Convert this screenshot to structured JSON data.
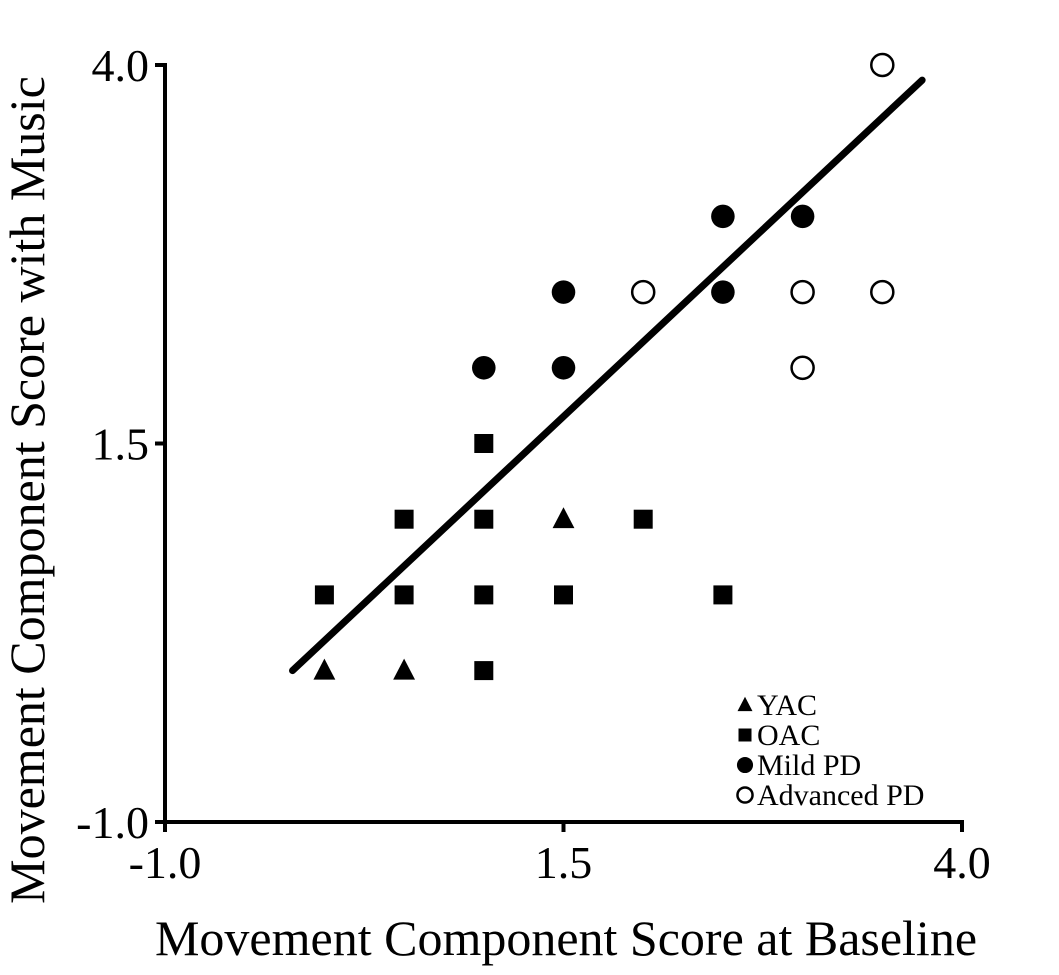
{
  "chart_data": {
    "type": "scatter",
    "title": "",
    "xlabel": "Movement Component Score at Baseline",
    "ylabel": "Movement Component Score with Music",
    "xlim": [
      -1.0,
      4.0
    ],
    "ylim": [
      -1.0,
      4.0
    ],
    "xticks": [
      "-1.0",
      "1.5",
      "4.0"
    ],
    "yticks": [
      "-1.0",
      "1.5",
      "4.0"
    ],
    "grid": false,
    "legend_position": "bottom-right",
    "trend_line": {
      "x": [
        -0.2,
        3.75
      ],
      "y": [
        0.0,
        3.9
      ]
    },
    "series": [
      {
        "name": "YAC",
        "marker": "triangle",
        "points": [
          {
            "x": 0.0,
            "y": 0.0
          },
          {
            "x": 0.5,
            "y": 0.0
          },
          {
            "x": 1.5,
            "y": 1.0
          }
        ]
      },
      {
        "name": "OAC",
        "marker": "square",
        "points": [
          {
            "x": 0.0,
            "y": 0.5
          },
          {
            "x": 0.5,
            "y": 1.0
          },
          {
            "x": 0.5,
            "y": 0.5
          },
          {
            "x": 1.0,
            "y": 1.5
          },
          {
            "x": 1.0,
            "y": 1.0
          },
          {
            "x": 1.0,
            "y": 0.5
          },
          {
            "x": 1.0,
            "y": 0.0
          },
          {
            "x": 1.5,
            "y": 0.5
          },
          {
            "x": 2.0,
            "y": 1.0
          },
          {
            "x": 2.5,
            "y": 0.5
          }
        ]
      },
      {
        "name": "Mild PD",
        "marker": "filled-circle",
        "points": [
          {
            "x": 1.0,
            "y": 2.0
          },
          {
            "x": 1.5,
            "y": 2.0
          },
          {
            "x": 1.5,
            "y": 2.5
          },
          {
            "x": 2.5,
            "y": 2.5
          },
          {
            "x": 2.5,
            "y": 3.0
          },
          {
            "x": 3.0,
            "y": 3.0
          }
        ]
      },
      {
        "name": "Advanced PD",
        "marker": "open-circle",
        "points": [
          {
            "x": 2.0,
            "y": 2.5
          },
          {
            "x": 3.0,
            "y": 2.5
          },
          {
            "x": 3.0,
            "y": 2.0
          },
          {
            "x": 3.5,
            "y": 2.5
          },
          {
            "x": 3.5,
            "y": 4.0
          }
        ]
      }
    ]
  }
}
